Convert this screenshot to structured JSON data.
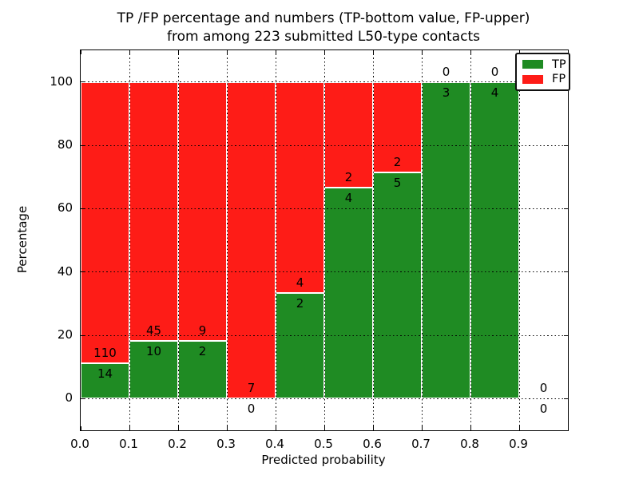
{
  "chart_data": {
    "type": "bar",
    "stacked": true,
    "normalized_to_percent": true,
    "title_lines": [
      "TP /FP percentage and numbers (TP-bottom value, FP-upper)",
      "from among 223 submitted L50-type contacts"
    ],
    "total_submitted_contacts": 223,
    "xlabel": "Predicted probability",
    "ylabel": "Percentage",
    "xlim": [
      0.0,
      1.0
    ],
    "ylim": [
      -10,
      110
    ],
    "x_ticks": [
      "0.0",
      "0.1",
      "0.2",
      "0.3",
      "0.4",
      "0.5",
      "0.6",
      "0.7",
      "0.8",
      "0.9"
    ],
    "y_ticks": [
      0,
      20,
      40,
      60,
      80,
      100
    ],
    "grid": "dotted-black-both-axes-above-bars",
    "bar_edge_color": "#ffffff",
    "colors": {
      "tp": "#1f8b23",
      "fp": "#fe1c17"
    },
    "legend": {
      "position": "upper-right",
      "entries": [
        {
          "label": "TP",
          "color_key": "tp"
        },
        {
          "label": "FP",
          "color_key": "fp"
        }
      ]
    },
    "bins": [
      {
        "x_range": [
          0.0,
          0.1
        ],
        "tp": 14,
        "fp": 110
      },
      {
        "x_range": [
          0.1,
          0.2
        ],
        "tp": 10,
        "fp": 45
      },
      {
        "x_range": [
          0.2,
          0.3
        ],
        "tp": 2,
        "fp": 9
      },
      {
        "x_range": [
          0.3,
          0.4
        ],
        "tp": 0,
        "fp": 7
      },
      {
        "x_range": [
          0.4,
          0.5
        ],
        "tp": 2,
        "fp": 4
      },
      {
        "x_range": [
          0.5,
          0.6
        ],
        "tp": 4,
        "fp": 2
      },
      {
        "x_range": [
          0.6,
          0.7
        ],
        "tp": 5,
        "fp": 2
      },
      {
        "x_range": [
          0.7,
          0.8
        ],
        "tp": 3,
        "fp": 0
      },
      {
        "x_range": [
          0.8,
          0.9
        ],
        "tp": 4,
        "fp": 0
      },
      {
        "x_range": [
          0.9,
          1.0
        ],
        "tp": 0,
        "fp": 0
      }
    ]
  }
}
